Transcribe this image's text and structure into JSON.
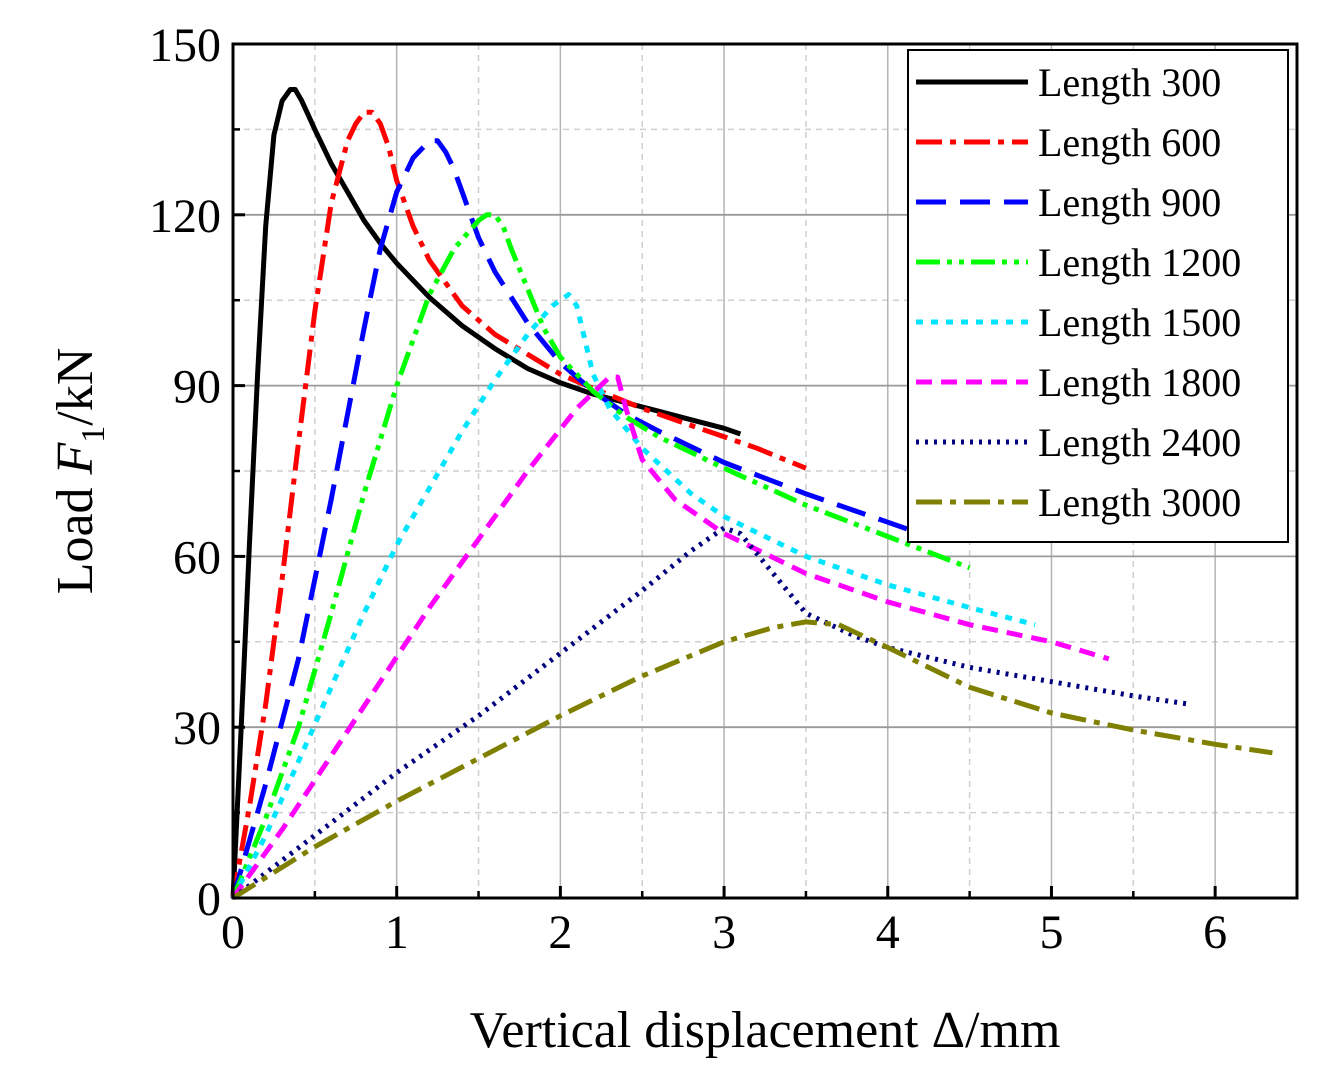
{
  "chart_data": {
    "type": "line",
    "xlabel": "Vertical displacement Δ/mm",
    "ylabel": {
      "prefix": "Load ",
      "var": "F",
      "sub": "1",
      "unit": "/kN"
    },
    "xlim": [
      0,
      6.5
    ],
    "ylim": [
      0,
      150
    ],
    "xticks": [
      0,
      1,
      2,
      3,
      4,
      5,
      6
    ],
    "yticks": [
      0,
      30,
      60,
      90,
      120,
      150
    ],
    "grid": true,
    "legend_position": "top-right",
    "series": [
      {
        "name": "Length 300",
        "color": "#000000",
        "dash": "solid",
        "x": [
          0,
          0.05,
          0.1,
          0.15,
          0.2,
          0.25,
          0.3,
          0.35,
          0.38,
          0.42,
          0.5,
          0.6,
          0.7,
          0.8,
          0.9,
          1.0,
          1.2,
          1.4,
          1.6,
          1.8,
          2.0,
          2.2,
          2.4,
          2.6,
          2.8,
          3.0,
          3.1
        ],
        "y": [
          0,
          30,
          62,
          92,
          118,
          134,
          140,
          142,
          142,
          140,
          135,
          129,
          124,
          119,
          115,
          111.5,
          105.5,
          100.5,
          96.5,
          93,
          90.5,
          88.5,
          87,
          85.5,
          84,
          82.5,
          81.5
        ]
      },
      {
        "name": "Length 600",
        "color": "#ff0000",
        "dash": "dashdot",
        "x": [
          0,
          0.1,
          0.2,
          0.3,
          0.4,
          0.5,
          0.6,
          0.7,
          0.75,
          0.8,
          0.85,
          0.9,
          0.95,
          1.0,
          1.1,
          1.2,
          1.4,
          1.6,
          1.8,
          2.0,
          2.2,
          2.5,
          2.8,
          3.0,
          3.2,
          3.5
        ],
        "y": [
          0,
          16,
          34,
          56,
          80,
          103,
          122,
          133,
          136,
          138,
          138,
          136,
          132,
          126,
          118,
          112,
          104,
          99,
          95.5,
          92,
          89.5,
          86,
          83,
          81,
          79,
          75.5
        ]
      },
      {
        "name": "Length 900",
        "color": "#0000ff",
        "dash": "dash",
        "x": [
          0,
          0.2,
          0.4,
          0.6,
          0.8,
          0.9,
          1.0,
          1.1,
          1.2,
          1.25,
          1.3,
          1.35,
          1.4,
          1.5,
          1.6,
          1.8,
          2.0,
          2.2,
          2.4,
          2.6,
          3.0,
          3.5,
          4.0,
          4.3
        ],
        "y": [
          0,
          20,
          42,
          70,
          100,
          114,
          124,
          130,
          133,
          133,
          131,
          128,
          124,
          116,
          110,
          101,
          94,
          89,
          85,
          82,
          76.5,
          71,
          66,
          63
        ]
      },
      {
        "name": "Length 1200",
        "color": "#00ff00",
        "dash": "dashdotdot",
        "x": [
          0,
          0.2,
          0.4,
          0.6,
          0.8,
          1.0,
          1.2,
          1.35,
          1.5,
          1.55,
          1.6,
          1.65,
          1.7,
          1.8,
          1.9,
          2.0,
          2.2,
          2.4,
          2.6,
          3.0,
          3.5,
          4.0,
          4.5
        ],
        "y": [
          0,
          14,
          30,
          50,
          71,
          90,
          106,
          114,
          119,
          120,
          120,
          118,
          114,
          107,
          100,
          95,
          89,
          84.5,
          81,
          75.5,
          69,
          63.5,
          58
        ]
      },
      {
        "name": "Length 1500",
        "color": "#00e5ff",
        "dash": "shortdot",
        "x": [
          0,
          0.2,
          0.4,
          0.6,
          0.8,
          1.0,
          1.2,
          1.4,
          1.6,
          1.8,
          1.95,
          2.05,
          2.1,
          2.15,
          2.2,
          2.3,
          2.5,
          2.8,
          3.0,
          3.5,
          4.0,
          4.5,
          4.9
        ],
        "y": [
          0,
          11,
          24,
          37,
          50,
          62,
          72,
          82,
          91,
          99,
          104,
          106,
          104,
          98,
          92,
          86,
          79,
          71,
          67,
          60,
          55,
          51,
          48
        ]
      },
      {
        "name": "Length 1800",
        "color": "#ff00ff",
        "dash": "shortdash",
        "x": [
          0,
          0.3,
          0.6,
          0.9,
          1.2,
          1.5,
          1.8,
          2.1,
          2.3,
          2.35,
          2.4,
          2.5,
          2.7,
          3.0,
          3.5,
          4.0,
          4.5,
          5.0,
          5.35
        ],
        "y": [
          0,
          12,
          25,
          38,
          51,
          63,
          75,
          86,
          91.5,
          91.5,
          86,
          77,
          70,
          64,
          57,
          52,
          48,
          45,
          42
        ]
      },
      {
        "name": "Length 2400",
        "color": "#00007f",
        "dash": "dot",
        "x": [
          0,
          0.5,
          1.0,
          1.5,
          2.0,
          2.5,
          2.8,
          3.0,
          3.1,
          3.3,
          3.5,
          3.8,
          4.0,
          4.5,
          5.0,
          5.5,
          5.85
        ],
        "y": [
          0,
          11,
          22,
          32,
          43,
          54,
          61,
          65,
          64,
          57,
          50,
          46,
          44,
          40.5,
          38,
          35.5,
          34
        ]
      },
      {
        "name": "Length 3000",
        "color": "#808000",
        "dash": "dashdot",
        "x": [
          0,
          0.5,
          1.0,
          1.5,
          2.0,
          2.5,
          3.0,
          3.3,
          3.5,
          3.7,
          4.0,
          4.5,
          5.0,
          5.5,
          6.0,
          6.35
        ],
        "y": [
          0,
          9,
          17,
          24.5,
          32,
          39,
          45,
          47.5,
          48.5,
          48,
          44,
          37,
          32.5,
          29.5,
          27,
          25.5
        ]
      }
    ]
  }
}
